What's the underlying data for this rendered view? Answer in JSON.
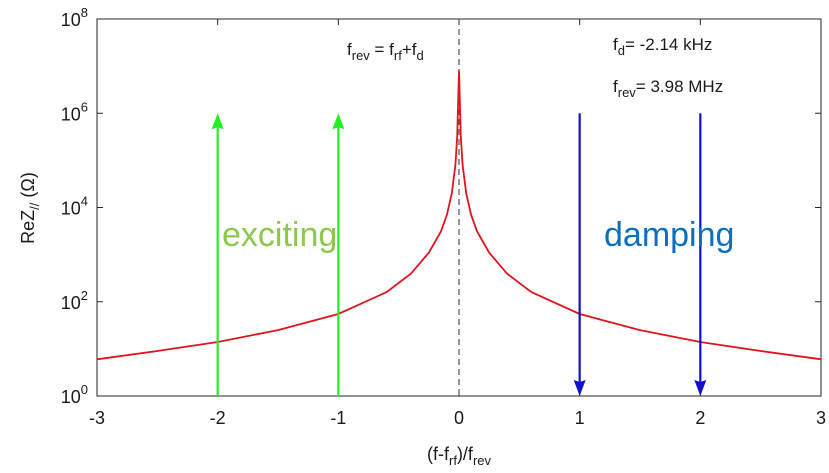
{
  "chart_data": {
    "type": "line",
    "xlabel": {
      "main": "(f-f",
      "sub1": "rf",
      "mid": ")/f",
      "sub2": "rev"
    },
    "ylabel": {
      "main": "ReZ",
      "sub": "//",
      "unit": " (Ω)"
    },
    "xlim": [
      -3,
      3
    ],
    "ylim_log10": [
      0,
      8
    ],
    "yscale": "log",
    "grid": false,
    "x_ticks": [
      "-3",
      "-2",
      "-1",
      "0",
      "1",
      "2",
      "3"
    ],
    "y_ticks": [
      {
        "base": "10",
        "exp": "0"
      },
      {
        "base": "10",
        "exp": "2"
      },
      {
        "base": "10",
        "exp": "4"
      },
      {
        "base": "10",
        "exp": "6"
      },
      {
        "base": "10",
        "exp": "8"
      }
    ],
    "series": [
      {
        "color": "#e0141e",
        "x": [
          -3,
          -2.5,
          -2,
          -1.5,
          -1,
          -0.6,
          -0.4,
          -0.25,
          -0.15,
          -0.1,
          -0.06,
          -0.03,
          -0.015,
          0,
          0.015,
          0.03,
          0.06,
          0.1,
          0.15,
          0.25,
          0.4,
          0.6,
          1,
          1.5,
          2,
          2.5,
          3
        ],
        "y": [
          6,
          9,
          14,
          25,
          55,
          160,
          390,
          1100,
          3100,
          7000,
          20000,
          80000,
          320000,
          8000000,
          320000,
          80000,
          20000,
          7000,
          3100,
          1100,
          390,
          160,
          55,
          25,
          14,
          9,
          6
        ]
      }
    ],
    "center_line": {
      "x": 0,
      "color": "#555555"
    },
    "arrows": [
      {
        "x": -2,
        "from": 1,
        "to": 1000000,
        "color": "#22ee22"
      },
      {
        "x": -1,
        "from": 1,
        "to": 1000000,
        "color": "#22ee22"
      },
      {
        "x": 1,
        "from": 1000000,
        "to": 1,
        "color": "#1010cc"
      },
      {
        "x": 2,
        "from": 1000000,
        "to": 1,
        "color": "#1010cc"
      }
    ],
    "annotations": {
      "center_label": {
        "f1": "f",
        "s1": "rev",
        "eq": " = f",
        "s2": "rf",
        "plus": "+f",
        "s3": "d"
      },
      "fd": {
        "f": "f",
        "s": "d",
        "val": "= -2.14 kHz"
      },
      "frev": {
        "f": "f",
        "s": "rev",
        "val": "= 3.98 MHz"
      },
      "exciting": {
        "text": "exciting",
        "color": "#8cc84b"
      },
      "damping": {
        "text": "damping",
        "color": "#0b6fc0"
      }
    }
  }
}
